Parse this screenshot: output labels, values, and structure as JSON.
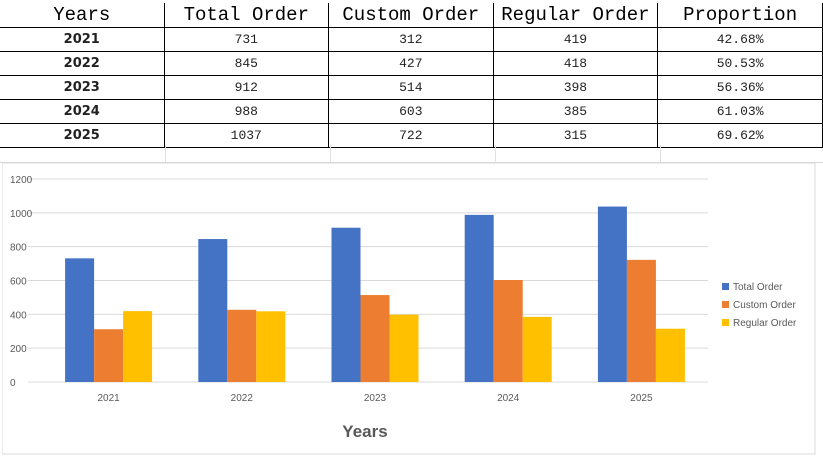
{
  "table": {
    "headers": [
      "Years",
      "Total Order",
      "Custom Order",
      "Regular Order",
      "Proportion"
    ],
    "rows": [
      [
        "2021",
        "731",
        "312",
        "419",
        "42.68%"
      ],
      [
        "2022",
        "845",
        "427",
        "418",
        "50.53%"
      ],
      [
        "2023",
        "912",
        "514",
        "398",
        "56.36%"
      ],
      [
        "2024",
        "988",
        "603",
        "385",
        "61.03%"
      ],
      [
        "2025",
        "1037",
        "722",
        "315",
        "69.62%"
      ]
    ]
  },
  "chart_data": {
    "type": "bar",
    "categories": [
      "2021",
      "2022",
      "2023",
      "2024",
      "2025"
    ],
    "series": [
      {
        "name": "Total Order",
        "values": [
          731,
          845,
          912,
          988,
          1037
        ],
        "color": "#4472C4"
      },
      {
        "name": "Custom Order",
        "values": [
          312,
          427,
          514,
          603,
          722
        ],
        "color": "#ED7D31"
      },
      {
        "name": "Regular Order",
        "values": [
          419,
          418,
          398,
          385,
          315
        ],
        "color": "#FFC000"
      }
    ],
    "xlabel": "Years",
    "ylabel": "",
    "ylim": [
      0,
      1200
    ],
    "yticks": [
      "0",
      "200",
      "400",
      "600",
      "800",
      "1000",
      "1200"
    ],
    "grid": true,
    "legend": "right"
  }
}
